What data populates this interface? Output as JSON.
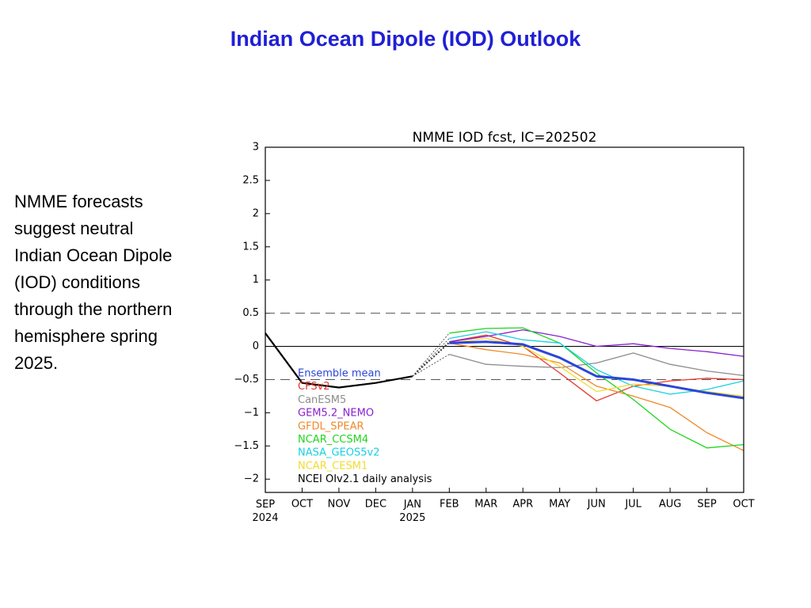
{
  "title": "Indian Ocean Dipole (IOD) Outlook",
  "side_text": [
    "NMME forecasts",
    "suggest neutral",
    "Indian Ocean Dipole",
    "(IOD) conditions",
    "through the northern",
    "hemisphere spring",
    "2025."
  ],
  "chart_data": {
    "type": "line",
    "title": "NMME IOD fcst, IC=202502",
    "categories": [
      "SEP 2024",
      "OCT",
      "NOV",
      "DEC",
      "JAN 2025",
      "FEB",
      "MAR",
      "APR",
      "MAY",
      "JUN",
      "JUL",
      "AUG",
      "SEP",
      "OCT"
    ],
    "ylim": [
      -2.2,
      3
    ],
    "yticks": [
      3,
      2.5,
      2,
      1.5,
      1,
      0.5,
      0,
      {
        "value": -0.5,
        "label": "−0.5"
      },
      {
        "value": -1,
        "label": "−1"
      },
      {
        "value": -1.5,
        "label": "−1.5"
      },
      {
        "value": -2,
        "label": "−2"
      }
    ],
    "reference_lines": [
      {
        "value": 0.5,
        "style": "dashed"
      },
      {
        "value": 0,
        "style": "solid"
      },
      {
        "value": -0.5,
        "style": "dashed"
      }
    ],
    "series": [
      {
        "name": "Ensemble mean",
        "color": "#2b45d8",
        "line_width": 3,
        "values": [
          null,
          null,
          null,
          null,
          null,
          0.05,
          0.07,
          0.03,
          -0.17,
          -0.45,
          -0.5,
          -0.6,
          -0.7,
          -0.78
        ]
      },
      {
        "name": "CFSv2",
        "color": "#e8352e",
        "line_width": 1.3,
        "values": [
          null,
          null,
          null,
          null,
          null,
          0.07,
          0.17,
          0.0,
          -0.4,
          -0.82,
          -0.6,
          -0.52,
          -0.48,
          -0.5
        ]
      },
      {
        "name": "CanESM5",
        "color": "#8c8c8c",
        "line_width": 1.3,
        "values": [
          null,
          null,
          null,
          null,
          null,
          -0.12,
          -0.27,
          -0.3,
          -0.32,
          -0.25,
          -0.1,
          -0.27,
          -0.37,
          -0.44
        ]
      },
      {
        "name": "GEM5.2_NEMO",
        "color": "#8a1fd0",
        "line_width": 1.3,
        "values": [
          null,
          null,
          null,
          null,
          null,
          0.07,
          0.15,
          0.25,
          0.15,
          0.0,
          0.04,
          -0.03,
          -0.08,
          -0.15
        ]
      },
      {
        "name": "GFDL_SPEAR",
        "color": "#f0892a",
        "line_width": 1.3,
        "values": [
          null,
          null,
          null,
          null,
          null,
          0.05,
          -0.05,
          -0.12,
          -0.25,
          -0.6,
          -0.75,
          -0.92,
          -1.3,
          -1.57
        ]
      },
      {
        "name": "NCAR_CCSM4",
        "color": "#1ed61e",
        "line_width": 1.3,
        "values": [
          null,
          null,
          null,
          null,
          null,
          0.2,
          0.27,
          0.28,
          0.05,
          -0.4,
          -0.8,
          -1.25,
          -1.53,
          -1.48
        ]
      },
      {
        "name": "NASA_GEOS5v2",
        "color": "#1ad0e0",
        "line_width": 1.3,
        "values": [
          null,
          null,
          null,
          null,
          null,
          0.12,
          0.22,
          0.1,
          0.05,
          -0.35,
          -0.6,
          -0.72,
          -0.65,
          -0.52
        ]
      },
      {
        "name": "NCAR_CESM1",
        "color": "#f0dc30",
        "line_width": 1.3,
        "values": [
          null,
          null,
          null,
          null,
          null,
          0.05,
          0.12,
          0.0,
          -0.3,
          -0.68,
          -0.57,
          -0.6,
          -0.68,
          -0.75
        ]
      },
      {
        "name": "NCEI OIv2.1 daily analysis",
        "color": "#000000",
        "line_width": 2.2,
        "values": [
          0.2,
          -0.55,
          -0.62,
          -0.55,
          -0.45,
          null,
          null,
          null,
          null,
          null,
          null,
          null,
          null,
          null
        ]
      }
    ]
  }
}
